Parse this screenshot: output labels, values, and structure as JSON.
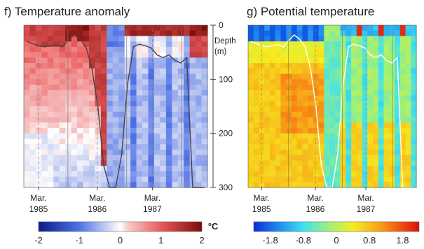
{
  "chart_data": [
    {
      "panel": "f",
      "title": "f) Temperature anomaly",
      "type": "heatmap",
      "x_ticks": [
        {
          "label": [
            "Mar.",
            "1985"
          ],
          "t": 0.08
        },
        {
          "label": [
            "Mar.",
            "1986"
          ],
          "t": 0.4
        },
        {
          "label": [
            "Mar.",
            "1987"
          ],
          "t": 0.7
        }
      ],
      "colorbar": {
        "unit": "°C",
        "ticks": [
          "-2",
          "-1",
          "0",
          "1",
          "2"
        ],
        "range": [
          -2,
          2
        ]
      },
      "mixed_layer_depth_m": [
        30,
        34,
        38,
        40,
        38,
        36,
        40,
        28,
        18,
        26,
        40,
        80,
        150,
        260,
        300,
        300,
        240,
        110,
        40,
        35,
        38,
        42,
        55,
        60,
        55,
        65,
        70,
        60,
        300,
        300,
        300
      ]
    },
    {
      "panel": "g",
      "title": "g) Potential temperature",
      "type": "heatmap",
      "x_ticks": [
        {
          "label": [
            "Mar.",
            "1985"
          ],
          "t": 0.08
        },
        {
          "label": [
            "Mar.",
            "1986"
          ],
          "t": 0.4
        },
        {
          "label": [
            "Mar.",
            "1987"
          ],
          "t": 0.7
        }
      ],
      "colorbar": {
        "unit": "",
        "ticks": [
          "-1.8",
          "-0.8",
          "0",
          "0.8",
          "1.8"
        ],
        "range": [
          -2.2,
          2.2
        ]
      },
      "mixed_layer_depth_m": [
        30,
        34,
        38,
        40,
        38,
        36,
        40,
        28,
        18,
        26,
        40,
        80,
        150,
        260,
        300,
        300,
        240,
        110,
        40,
        35,
        38,
        42,
        55,
        60,
        55,
        65,
        70,
        60,
        300,
        300,
        300
      ]
    }
  ],
  "depth_axis": {
    "title": [
      "Depth",
      "(m)"
    ],
    "ticks": [
      0,
      100,
      200,
      300
    ],
    "range": [
      0,
      300
    ]
  }
}
